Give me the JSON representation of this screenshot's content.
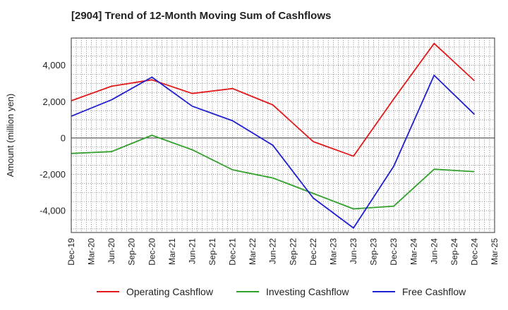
{
  "chart_data": {
    "type": "line",
    "title": "[2904]  Trend of 12-Month Moving Sum of Cashflows",
    "xlabel": "",
    "ylabel": "Amount (million yen)",
    "categories": [
      "Dec-19",
      "Mar-20",
      "Jun-20",
      "Sep-20",
      "Dec-20",
      "Mar-21",
      "Jun-21",
      "Sep-21",
      "Dec-21",
      "Mar-22",
      "Jun-22",
      "Sep-22",
      "Dec-22",
      "Mar-23",
      "Jun-23",
      "Sep-23",
      "Dec-23",
      "Mar-24",
      "Jun-24",
      "Sep-24",
      "Dec-24",
      "Mar-25"
    ],
    "ylim": [
      -5200,
      5500
    ],
    "yticks": [
      4000,
      2000,
      0,
      -2000,
      -4000
    ],
    "ytick_labels": [
      "4,000",
      "2,000",
      "0",
      "-2,000",
      "-4,000"
    ],
    "grid": true,
    "legend_position": "bottom",
    "series": [
      {
        "name": "Operating Cashflow",
        "color": "#e31a1c",
        "values": [
          2050,
          null,
          2850,
          null,
          3200,
          null,
          2450,
          null,
          2720,
          null,
          1820,
          null,
          -200,
          null,
          -1000,
          null,
          2150,
          null,
          5200,
          null,
          3150,
          null
        ]
      },
      {
        "name": "Investing Cashflow",
        "color": "#33a02c",
        "values": [
          -850,
          null,
          -750,
          null,
          150,
          null,
          -650,
          null,
          -1750,
          null,
          -2200,
          null,
          -3050,
          null,
          -3900,
          null,
          -3750,
          null,
          -1720,
          null,
          -1850,
          null
        ]
      },
      {
        "name": "Free Cashflow",
        "color": "#1f1fcf",
        "values": [
          1200,
          null,
          2100,
          null,
          3350,
          null,
          1750,
          null,
          950,
          null,
          -400,
          null,
          -3300,
          null,
          -4950,
          null,
          -1550,
          null,
          3450,
          null,
          1300,
          null
        ]
      }
    ]
  }
}
